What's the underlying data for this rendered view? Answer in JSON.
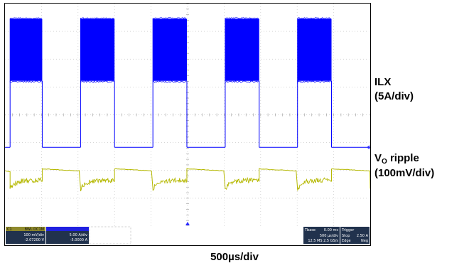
{
  "chart_data": {
    "type": "line",
    "title": "",
    "xlabel": "500µs/div",
    "xlim_div": [
      0,
      10
    ],
    "grid": true,
    "grid_divisions": {
      "x": 10,
      "y": 8
    },
    "series": [
      {
        "name": "ILX",
        "scale_label": "(5A/div)",
        "color": "#0000ff",
        "description": "switching inductor current, dense high-frequency ripple band during bursts",
        "bursts_div": [
          [
            0.14,
            1.02
          ],
          [
            2.07,
            3.0
          ],
          [
            4.05,
            4.98
          ],
          [
            6.03,
            6.96
          ],
          [
            8.01,
            8.94
          ]
        ],
        "band_top_div": 7.45,
        "band_bottom_div": 5.22,
        "off_level_div": 2.83
      },
      {
        "name": "VO ripple",
        "name_main": "V",
        "name_sub": "O",
        "name_rest": " ripple",
        "scale_label": "(100mV/div)",
        "color": "#b5b800",
        "description": "output voltage ripple, rises during burst, droops between bursts",
        "bursts_div": [
          [
            0.14,
            1.02
          ],
          [
            2.07,
            3.0
          ],
          [
            4.05,
            4.98
          ],
          [
            6.03,
            6.96
          ],
          [
            8.01,
            8.94
          ]
        ],
        "burst_level_div": 1.65,
        "droop_start_div": 0.72,
        "droop_end_div": 1.08
      }
    ]
  },
  "statusbar": {
    "ch1_tag": "C1",
    "ch1_mode": "BWL DC1M",
    "ch1_scale": "100 mV/div",
    "ch1_offset": "-2.07200 V",
    "ch2_scale": "5.00 A/div",
    "ch2_offset": "-5.0000 A",
    "tbase_label": "Tbase",
    "tbase_value": "0.00 ms",
    "tbase_div": "500 µs/div",
    "samples": "12.5 MS  2.5 GS/s",
    "trigger_label": "Trigger",
    "trigger_mode": "Stop",
    "trigger_type": "Edge",
    "trigger_level": "2.50 A",
    "trigger_slope": "Neg"
  },
  "colors": {
    "ilx": "#0000ff",
    "vo": "#b5b800",
    "grid": "#c8c8c8",
    "statusbar": "#21324d"
  }
}
